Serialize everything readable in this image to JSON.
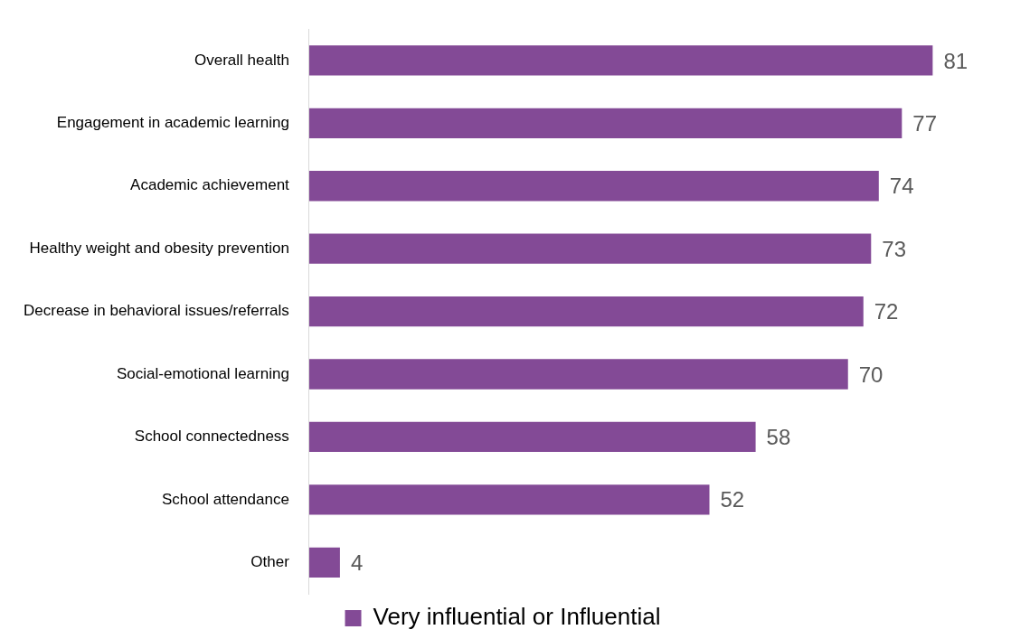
{
  "chart_data": {
    "type": "bar",
    "orientation": "horizontal",
    "categories": [
      "Overall health",
      "Engagement in academic learning",
      "Academic achievement",
      "Healthy weight and obesity prevention",
      "Decrease in behavioral issues/referrals",
      "Social-emotional learning",
      "School connectedness",
      "School attendance",
      "Other"
    ],
    "series": [
      {
        "name": "Very influential or Influential",
        "color": "#834a96",
        "values": [
          81,
          77,
          74,
          73,
          72,
          70,
          58,
          52,
          4
        ]
      }
    ],
    "data_labels": true,
    "legend": "bottom"
  }
}
